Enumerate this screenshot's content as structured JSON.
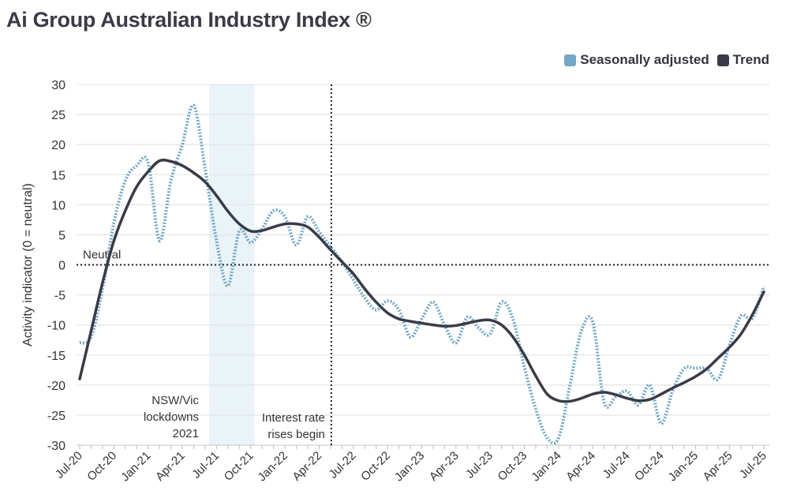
{
  "title": "Ai Group Australian Industry Index ®",
  "colors": {
    "seasonally_adjusted": "#74a9c6",
    "trend": "#393b48",
    "shade": "#eaf3f7",
    "grid": "#e6e6e6"
  },
  "chart_data": {
    "type": "line",
    "ylabel": "Activity indicator (0 = neutral)",
    "ylim": [
      -30,
      30
    ],
    "yticks": [
      30,
      25,
      20,
      15,
      10,
      5,
      0,
      -5,
      -10,
      -15,
      -20,
      -25,
      -30
    ],
    "grid": true,
    "legend": "top-right",
    "x_start": "Jul-20",
    "x_end": "Jul-25",
    "x_frequency": "monthly",
    "xtick_labels": [
      "Jul-20",
      "Oct-20",
      "Jan-21",
      "Apr-21",
      "Jul-21",
      "Oct-21",
      "Jan-22",
      "Apr-22",
      "Jul-22",
      "Oct-22",
      "Jan-23",
      "Apr-23",
      "Jul-23",
      "Oct-23",
      "Jan-24",
      "Apr-24",
      "Jul-24",
      "Oct-24",
      "Jan-25",
      "Apr-25",
      "Jul-25"
    ],
    "series": [
      {
        "name": "Seasonally adjusted",
        "style": "dotted",
        "values": [
          -13,
          -12,
          -4,
          7,
          14,
          16.5,
          17,
          4,
          14,
          20,
          26.5,
          16,
          4,
          -3.5,
          5.6,
          3.7,
          6,
          9,
          8,
          3.3,
          8,
          5.5,
          3,
          0.5,
          -2.5,
          -5.5,
          -7.5,
          -6,
          -7.5,
          -12,
          -9,
          -6.2,
          -10,
          -13,
          -8.7,
          -10.5,
          -11.5,
          -6.2,
          -9,
          -17,
          -24,
          -28.8,
          -28.8,
          -20,
          -11,
          -9.5,
          -22.9,
          -22,
          -21,
          -23.3,
          -20,
          -26.4,
          -21,
          -17.3,
          -17.2,
          -17.3,
          -19,
          -13.3,
          -8.5,
          -8.9,
          -3.6
        ]
      },
      {
        "name": "Trend",
        "style": "solid",
        "values": [
          -19,
          -11,
          -3,
          4,
          9,
          13,
          15.5,
          17.3,
          17.2,
          16.5,
          15.3,
          13.8,
          11.5,
          8.9,
          6.8,
          5.6,
          5.7,
          6.3,
          6.8,
          6.8,
          6.3,
          4.6,
          2.5,
          0.5,
          -1.5,
          -4,
          -6.2,
          -8,
          -9,
          -9.4,
          -9.7,
          -10,
          -10.2,
          -10.1,
          -9.7,
          -9.3,
          -9.2,
          -10,
          -12,
          -15,
          -18.5,
          -21.5,
          -22.6,
          -22.7,
          -22.2,
          -21.5,
          -21.2,
          -21.6,
          -22.2,
          -22.6,
          -22.4,
          -21.5,
          -20.5,
          -19.6,
          -18.6,
          -17.3,
          -15.5,
          -13.7,
          -11.5,
          -8.3,
          -4.5
        ]
      }
    ],
    "annotations": {
      "neutral_label": "Neutral",
      "neutral_value": 0,
      "lockdown_label_lines": [
        "NSW/Vic",
        "lockdowns",
        "2021"
      ],
      "lockdown_start": "Jun-21",
      "lockdown_end": "Oct-21",
      "rates_label_lines": [
        "Interest rate",
        "rises begin"
      ],
      "rates_date": "May-22"
    }
  }
}
